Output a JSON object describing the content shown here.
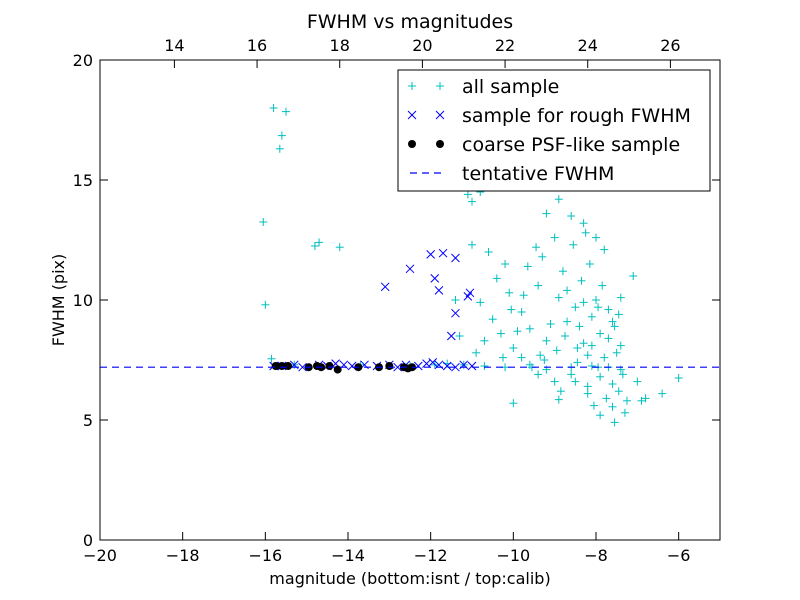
{
  "chart_data": {
    "type": "scatter",
    "title": "FWHM vs magnitudes",
    "xlabel": "magnitude (bottom:isnt / top:calib)",
    "ylabel": "FWHM (pix)",
    "xlim": [
      -20,
      -5
    ],
    "ylim": [
      0,
      20
    ],
    "top_xlim": [
      12.2,
      27.2
    ],
    "x_ticks": [
      -20,
      -18,
      -16,
      -14,
      -12,
      -10,
      -8,
      -6
    ],
    "x_tick_labels": [
      "−20",
      "−18",
      "−16",
      "−14",
      "−12",
      "−10",
      "−8",
      "−6"
    ],
    "top_x_ticks": [
      14,
      16,
      18,
      20,
      22,
      24,
      26
    ],
    "top_x_tick_labels": [
      "14",
      "16",
      "18",
      "20",
      "22",
      "24",
      "26"
    ],
    "y_ticks": [
      0,
      5,
      10,
      15,
      20
    ],
    "y_tick_labels": [
      "0",
      "5",
      "10",
      "15",
      "20"
    ],
    "grid": false,
    "legend_position": "upper-right",
    "colors": {
      "all_sample": "#00bfbf",
      "rough_sample": "#0000ff",
      "psf_sample": "#000000",
      "tentative": "#0000ff"
    },
    "series": [
      {
        "name": "all sample",
        "marker": "plus",
        "points": [
          [
            -15.8,
            18.0
          ],
          [
            -15.5,
            17.85
          ],
          [
            -15.6,
            16.85
          ],
          [
            -15.65,
            16.3
          ],
          [
            -16.05,
            13.25
          ],
          [
            -16.0,
            9.8
          ],
          [
            -15.85,
            7.55
          ],
          [
            -15.3,
            7.3
          ],
          [
            -14.8,
            12.25
          ],
          [
            -14.7,
            12.4
          ],
          [
            -14.2,
            12.2
          ],
          [
            -13.7,
            7.3
          ],
          [
            -12.5,
            7.25
          ],
          [
            -11.9,
            7.3
          ],
          [
            -11.6,
            7.35
          ],
          [
            -11.2,
            7.3
          ],
          [
            -10.7,
            7.25
          ],
          [
            -10.2,
            7.2
          ],
          [
            -9.6,
            7.3
          ],
          [
            -9.2,
            7.1
          ],
          [
            -8.6,
            7.2
          ],
          [
            -8.1,
            7.25
          ],
          [
            -7.7,
            7.2
          ],
          [
            -7.4,
            7.1
          ],
          [
            -10.0,
            5.7
          ],
          [
            -8.9,
            5.85
          ],
          [
            -8.5,
            6.6
          ],
          [
            -8.2,
            6.1
          ],
          [
            -7.9,
            5.2
          ],
          [
            -7.6,
            5.55
          ],
          [
            -7.55,
            4.9
          ],
          [
            -7.3,
            5.3
          ],
          [
            -7.25,
            5.8
          ],
          [
            -7.0,
            6.6
          ],
          [
            -6.9,
            5.8
          ],
          [
            -6.8,
            5.9
          ],
          [
            -6.4,
            6.1
          ],
          [
            -6.0,
            6.75
          ],
          [
            -7.1,
            11.0
          ],
          [
            -7.4,
            10.1
          ],
          [
            -11.1,
            14.4
          ],
          [
            -11.0,
            14.1
          ],
          [
            -10.8,
            14.5
          ],
          [
            -10.5,
            15.0
          ],
          [
            -10.0,
            15.3
          ],
          [
            -9.8,
            15.5
          ],
          [
            -9.5,
            14.7
          ],
          [
            -9.2,
            13.6
          ],
          [
            -8.9,
            14.2
          ],
          [
            -8.6,
            13.5
          ],
          [
            -8.3,
            13.2
          ],
          [
            -8.0,
            12.6
          ],
          [
            -7.8,
            12.1
          ],
          [
            -9.1,
            20.1
          ],
          [
            -9.0,
            19.2
          ],
          [
            -11.0,
            12.3
          ],
          [
            -10.6,
            12.0
          ],
          [
            -10.2,
            11.5
          ],
          [
            -10.4,
            10.9
          ],
          [
            -10.1,
            10.3
          ],
          [
            -10.8,
            9.9
          ],
          [
            -10.5,
            9.2
          ],
          [
            -10.3,
            8.6
          ],
          [
            -10.0,
            8.0
          ],
          [
            -10.7,
            8.3
          ],
          [
            -10.9,
            7.8
          ],
          [
            -11.4,
            10.0
          ],
          [
            -11.3,
            8.5
          ],
          [
            -9.8,
            9.5
          ],
          [
            -9.6,
            8.8
          ],
          [
            -9.4,
            10.6
          ],
          [
            -9.3,
            11.8
          ],
          [
            -9.0,
            12.6
          ],
          [
            -8.8,
            11.2
          ],
          [
            -8.7,
            10.4
          ],
          [
            -8.5,
            9.7
          ],
          [
            -8.4,
            8.9
          ],
          [
            -8.3,
            8.2
          ],
          [
            -8.2,
            7.7
          ],
          [
            -8.1,
            9.3
          ],
          [
            -8.0,
            10.0
          ],
          [
            -7.9,
            8.6
          ],
          [
            -7.8,
            7.6
          ],
          [
            -7.7,
            8.4
          ],
          [
            -7.6,
            9.1
          ],
          [
            -7.5,
            7.8
          ],
          [
            -7.4,
            8.1
          ],
          [
            -7.35,
            6.9
          ],
          [
            -7.6,
            6.5
          ],
          [
            -7.9,
            6.8
          ],
          [
            -8.2,
            6.4
          ],
          [
            -8.6,
            6.9
          ],
          [
            -9.0,
            6.6
          ],
          [
            -9.4,
            6.9
          ],
          [
            -9.8,
            7.6
          ],
          [
            -9.1,
            9.0
          ],
          [
            -8.95,
            7.9
          ],
          [
            -8.75,
            8.5
          ],
          [
            -8.45,
            7.4
          ],
          [
            -8.35,
            10.8
          ],
          [
            -8.15,
            11.5
          ],
          [
            -7.95,
            9.7
          ],
          [
            -7.85,
            10.6
          ],
          [
            -7.7,
            9.6
          ],
          [
            -7.55,
            8.9
          ],
          [
            -7.45,
            9.4
          ],
          [
            -8.55,
            12.3
          ],
          [
            -8.25,
            12.8
          ],
          [
            -9.45,
            12.2
          ],
          [
            -9.65,
            11.4
          ],
          [
            -9.75,
            10.2
          ],
          [
            -9.9,
            8.7
          ],
          [
            -10.05,
            9.6
          ],
          [
            -10.25,
            7.6
          ],
          [
            -9.55,
            7.2
          ],
          [
            -9.25,
            7.5
          ],
          [
            -8.85,
            6.2
          ],
          [
            -8.05,
            5.6
          ],
          [
            -7.75,
            5.9
          ],
          [
            -7.45,
            6.2
          ],
          [
            -8.3,
            9.9
          ],
          [
            -8.1,
            8.1
          ],
          [
            -7.95,
            7.2
          ],
          [
            -8.45,
            8.0
          ],
          [
            -8.7,
            9.1
          ],
          [
            -8.9,
            10.1
          ],
          [
            -9.2,
            8.3
          ],
          [
            -9.35,
            7.7
          ]
        ]
      },
      {
        "name": "sample for rough FWHM",
        "marker": "x",
        "points": [
          [
            -12.5,
            11.3
          ],
          [
            -13.1,
            10.55
          ],
          [
            -12.0,
            11.9
          ],
          [
            -11.7,
            11.95
          ],
          [
            -11.4,
            11.75
          ],
          [
            -11.9,
            10.9
          ],
          [
            -11.8,
            10.4
          ],
          [
            -11.05,
            10.3
          ],
          [
            -11.1,
            10.15
          ],
          [
            -11.4,
            9.45
          ],
          [
            -11.5,
            8.5
          ],
          [
            -15.8,
            7.25
          ],
          [
            -15.6,
            7.25
          ],
          [
            -15.3,
            7.3
          ],
          [
            -15.1,
            7.2
          ],
          [
            -14.7,
            7.3
          ],
          [
            -14.5,
            7.25
          ],
          [
            -14.3,
            7.35
          ],
          [
            -14.1,
            7.3
          ],
          [
            -13.9,
            7.25
          ],
          [
            -13.6,
            7.3
          ],
          [
            -13.3,
            7.25
          ],
          [
            -13.0,
            7.3
          ],
          [
            -12.8,
            7.2
          ],
          [
            -12.6,
            7.3
          ],
          [
            -12.3,
            7.25
          ],
          [
            -12.1,
            7.35
          ],
          [
            -11.95,
            7.4
          ],
          [
            -11.8,
            7.3
          ],
          [
            -11.6,
            7.25
          ],
          [
            -11.4,
            7.2
          ],
          [
            -11.2,
            7.3
          ],
          [
            -11.0,
            7.25
          ]
        ]
      },
      {
        "name": "coarse PSF-like sample",
        "marker": "circle",
        "points": [
          [
            -15.75,
            7.25
          ],
          [
            -15.6,
            7.25
          ],
          [
            -15.45,
            7.25
          ],
          [
            -14.95,
            7.2
          ],
          [
            -14.75,
            7.25
          ],
          [
            -14.65,
            7.2
          ],
          [
            -14.45,
            7.25
          ],
          [
            -14.25,
            7.1
          ],
          [
            -13.75,
            7.2
          ],
          [
            -13.25,
            7.2
          ],
          [
            -13.0,
            7.25
          ],
          [
            -12.65,
            7.2
          ],
          [
            -12.55,
            7.15
          ],
          [
            -12.45,
            7.2
          ]
        ]
      },
      {
        "name": "tentative FWHM",
        "type": "hline",
        "y": 7.2
      }
    ]
  }
}
